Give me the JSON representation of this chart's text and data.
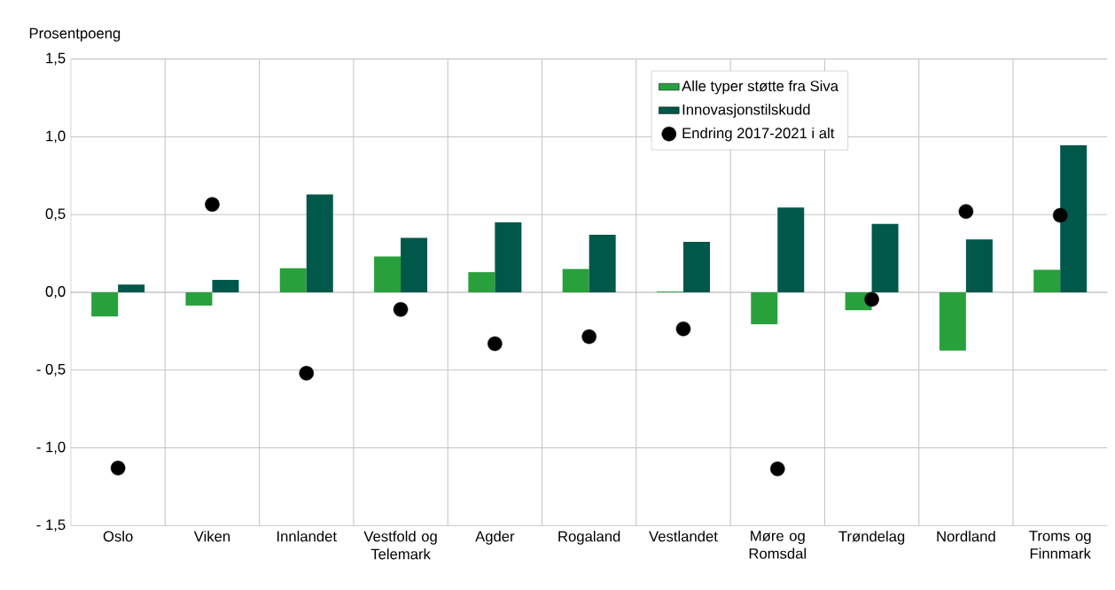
{
  "chart_data": {
    "type": "bar",
    "ylabel": "Prosentpoeng",
    "categories": [
      "Oslo",
      "Viken",
      "Innlandet",
      "Vestfold og Telemark",
      "Agder",
      "Rogaland",
      "Vestlandet",
      "Møre og Romsdal",
      "Trøndelag",
      "Nordland",
      "Troms og Finnmark"
    ],
    "series": [
      {
        "name": "Alle typer støtte fra Siva",
        "color": "#28a13c",
        "values": [
          -0.155,
          -0.085,
          0.155,
          0.23,
          0.13,
          0.15,
          0.005,
          -0.205,
          -0.115,
          -0.375,
          0.145
        ]
      },
      {
        "name": "Innovasjonstilskudd",
        "color": "#00584a",
        "values": [
          0.05,
          0.08,
          0.63,
          0.35,
          0.45,
          0.37,
          0.325,
          0.545,
          0.44,
          0.34,
          0.945
        ]
      },
      {
        "name": "Endring 2017-2021 i alt",
        "type": "scatter",
        "color": "#000000",
        "values": [
          -1.13,
          0.565,
          -0.52,
          -0.11,
          -0.33,
          -0.285,
          -0.235,
          -1.135,
          -0.045,
          0.52,
          0.495
        ]
      }
    ],
    "ylim": [
      -1.5,
      1.5
    ],
    "yticks": [
      {
        "value": -1.5,
        "label": "- 1,5"
      },
      {
        "value": -1.0,
        "label": "- 1,0"
      },
      {
        "value": -0.5,
        "label": "- 0,5"
      },
      {
        "value": 0,
        "label": "0,0"
      },
      {
        "value": 0.5,
        "label": "0,5"
      },
      {
        "value": 1.0,
        "label": "1,0"
      },
      {
        "value": 1.5,
        "label": "1,5"
      }
    ],
    "grid": true,
    "legend": "top"
  }
}
